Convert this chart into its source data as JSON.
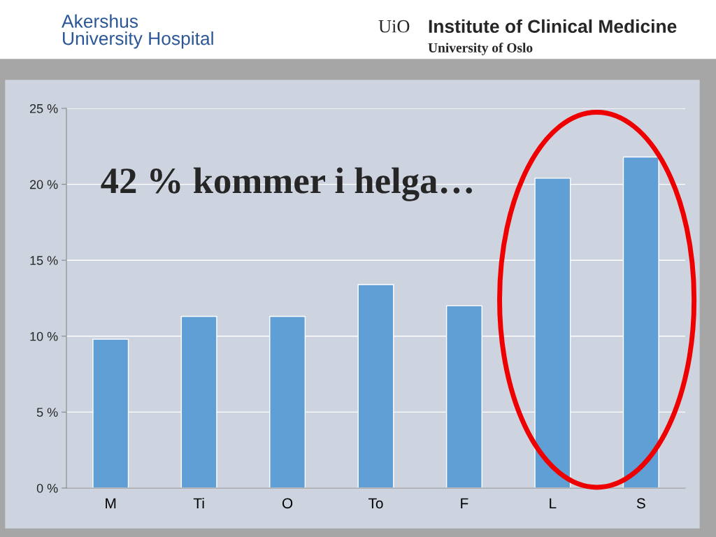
{
  "chart_data": {
    "type": "bar",
    "categories": [
      "M",
      "Ti",
      "O",
      "To",
      "F",
      "L",
      "S"
    ],
    "values": [
      9.8,
      11.3,
      11.3,
      13.4,
      12.0,
      20.4,
      21.8
    ],
    "color": "#5f9fd5",
    "ylim": [
      0,
      25
    ],
    "yticks": [
      {
        "value": 0,
        "label": "0 %"
      },
      {
        "value": 5,
        "label": "5 %"
      },
      {
        "value": 10,
        "label": "10 %"
      },
      {
        "value": 15,
        "label": "15 %"
      },
      {
        "value": 20,
        "label": "20 %"
      },
      {
        "value": 25,
        "label": "25 %"
      }
    ],
    "grid": "y",
    "annotations": [
      "42 % kommer i helga…",
      "Akershus\nUniversity Hospital",
      "UiO",
      "Institute of Clinical Medicine",
      "University of Oslo"
    ]
  }
}
